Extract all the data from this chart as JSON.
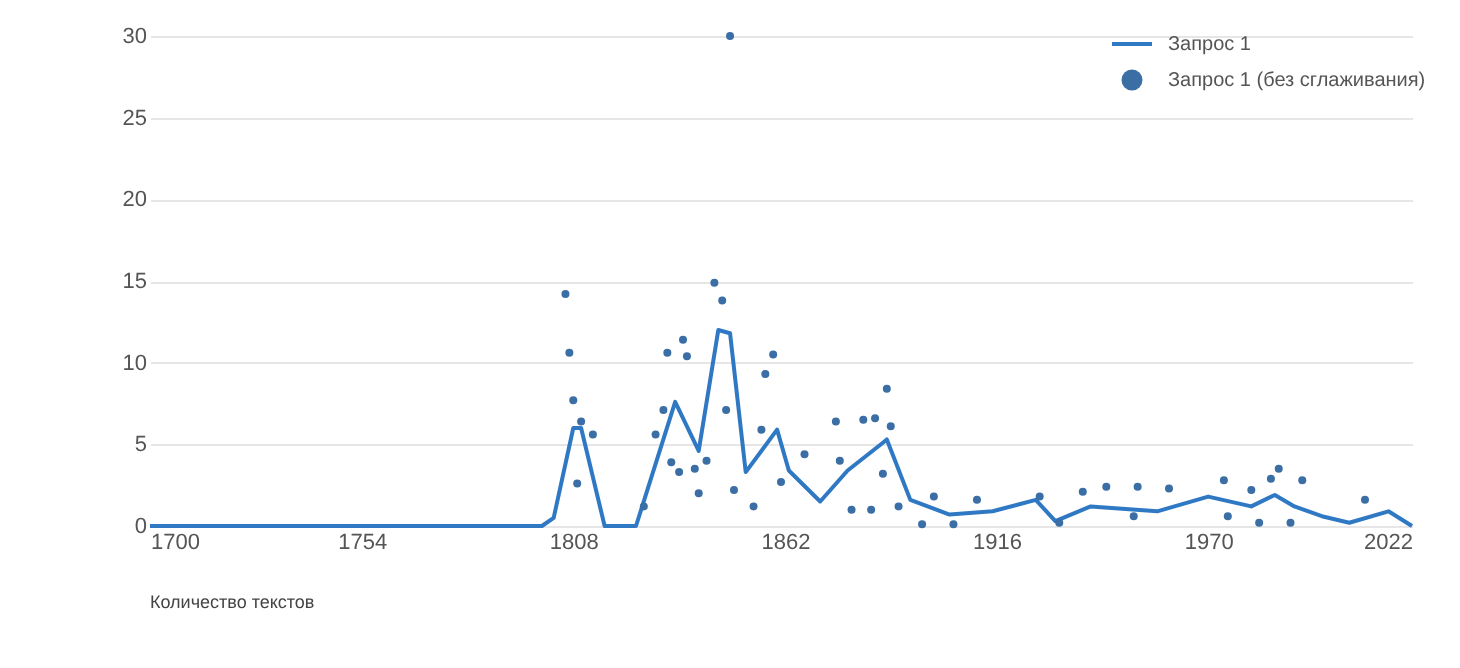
{
  "chart_data": {
    "type": "line",
    "xlim": [
      1700,
      2022
    ],
    "xticks": [
      1700,
      1754,
      1808,
      1862,
      1916,
      1970,
      2022
    ],
    "ylim": [
      0,
      30
    ],
    "yticks": [
      0,
      5,
      10,
      15,
      20,
      25,
      30
    ],
    "grid": "y",
    "legend": "top right",
    "annotations": [
      "Количество текстов"
    ],
    "series": [
      {
        "name": "Запрос 1",
        "color": "#2f78c4",
        "x": [
          1700,
          1750,
          1800,
          1803,
          1808,
          1810,
          1813,
          1816,
          1824,
          1834,
          1840,
          1845,
          1848,
          1852,
          1860,
          1863,
          1871,
          1878,
          1887,
          1888,
          1894,
          1904,
          1915,
          1926,
          1931,
          1940,
          1957,
          1970,
          1981,
          1987,
          1992,
          1999,
          2006,
          2016,
          2022
        ],
        "values": [
          0,
          0,
          0,
          0.5,
          6.0,
          6.0,
          3.0,
          0,
          0,
          7.6,
          4.6,
          12.0,
          11.8,
          3.3,
          5.9,
          3.4,
          1.5,
          3.4,
          5.1,
          5.3,
          1.6,
          0.7,
          0.9,
          1.6,
          0.3,
          1.2,
          0.9,
          1.8,
          1.2,
          1.9,
          1.2,
          0.6,
          0.2,
          0.9,
          0
        ]
      },
      {
        "name": "Запрос 1 (без сглаживания)",
        "type": "scatter",
        "marker": "circle",
        "color": "#3a6ea5",
        "x": [
          1806,
          1807,
          1808,
          1810,
          1809,
          1813,
          1826,
          1829,
          1832,
          1831,
          1833,
          1836,
          1837,
          1835,
          1840,
          1839,
          1842,
          1844,
          1846,
          1847,
          1848,
          1849,
          1854,
          1857,
          1859,
          1856,
          1861,
          1867,
          1875,
          1876,
          1879,
          1882,
          1885,
          1888,
          1887,
          1891,
          1897,
          1889,
          1884,
          1900,
          1911,
          1927,
          1938,
          1944,
          1952,
          1960,
          1974,
          1981,
          1986,
          1988,
          1994,
          2010,
          1983,
          1991,
          1975,
          1951,
          1932,
          1905
        ],
        "values": [
          14.2,
          10.6,
          7.7,
          6.4,
          2.6,
          5.6,
          1.2,
          5.6,
          10.6,
          7.1,
          3.9,
          11.4,
          10.4,
          3.3,
          2.0,
          3.5,
          4.0,
          14.9,
          13.8,
          7.1,
          30.0,
          2.2,
          1.2,
          9.3,
          10.5,
          5.9,
          2.7,
          4.4,
          6.4,
          4.0,
          1.0,
          6.5,
          6.6,
          8.4,
          3.2,
          1.2,
          0.1,
          6.1,
          1.0,
          1.8,
          1.6,
          1.8,
          2.1,
          2.4,
          2.4,
          2.3,
          2.8,
          2.2,
          2.9,
          3.5,
          2.8,
          1.6,
          0.2,
          0.2,
          0.6,
          0.6,
          0.2,
          0.1
        ]
      }
    ]
  }
}
